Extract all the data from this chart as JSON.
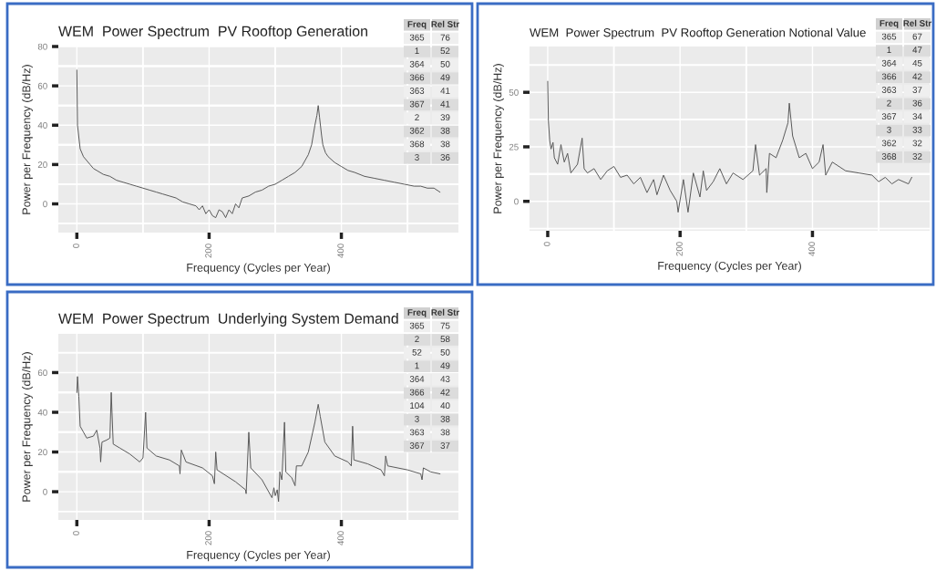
{
  "chart_data": [
    {
      "type": "line",
      "title": "WEM  Power Spectrum  PV Rooftop Generation",
      "xlabel": "Frequency (Cycles per Year)",
      "ylabel": "Power per Frequency (dB/Hz)",
      "xlim": [
        -28,
        577
      ],
      "ylim": [
        -14.6,
        80
      ],
      "xticks": [
        0,
        200,
        400
      ],
      "yticks": [
        0,
        20,
        40,
        60,
        80
      ],
      "grid": true,
      "legend": false,
      "series": [
        {
          "color": "#555555",
          "x": [
            0,
            1,
            5,
            10,
            15,
            20,
            25,
            30,
            40,
            50,
            60,
            70,
            80,
            90,
            100,
            110,
            120,
            130,
            140,
            150,
            160,
            170,
            180,
            185,
            190,
            195,
            200,
            205,
            210,
            215,
            220,
            225,
            230,
            235,
            240,
            245,
            250,
            260,
            270,
            280,
            290,
            300,
            310,
            320,
            330,
            340,
            345,
            350,
            355,
            360,
            363,
            365,
            367,
            370,
            372,
            376,
            380,
            390,
            400,
            410,
            420,
            435,
            450,
            465,
            480,
            495,
            510,
            520,
            530,
            540,
            549
          ],
          "values": [
            68,
            40,
            28,
            24,
            22,
            20,
            18,
            17,
            15,
            14,
            12,
            11,
            10,
            9,
            8,
            7,
            6,
            5,
            4,
            3,
            1,
            0,
            -1,
            -3,
            -1,
            -5,
            -3,
            -6,
            -7,
            -3,
            -4,
            -7,
            -3,
            -5,
            0,
            -2,
            3,
            4,
            6,
            7,
            9,
            10,
            12,
            14,
            16,
            19,
            22,
            25,
            30,
            40,
            45,
            50,
            44,
            35,
            30,
            26,
            24,
            21,
            19,
            17,
            16,
            14,
            13,
            12,
            11,
            10,
            9,
            9,
            8,
            8,
            6
          ]
        }
      ],
      "annotations": [
        "Freq",
        "Rel Str",
        "365",
        "76",
        "1",
        "52",
        "364",
        "50",
        "366",
        "49",
        "363",
        "41",
        "367",
        "41",
        "2",
        "39",
        "362",
        "38",
        "368",
        "38",
        "3",
        "36"
      ]
    },
    {
      "type": "line",
      "title": "WEM  Power Spectrum  PV Rooftop Generation Notional Value",
      "xlabel": "Frequency (Cycles per Year)",
      "ylabel": "Power per Frequency (dB/Hz)",
      "xlim": [
        -27.5,
        577
      ],
      "ylim": [
        -13.5,
        71
      ],
      "xticks": [
        0,
        200,
        400
      ],
      "yticks": [
        0,
        25,
        50
      ],
      "grid": true,
      "legend": false,
      "series": [
        {
          "color": "#555555",
          "x": [
            0,
            1,
            3,
            5,
            8,
            10,
            15,
            20,
            25,
            30,
            35,
            45,
            52,
            55,
            60,
            70,
            80,
            90,
            100,
            110,
            120,
            130,
            140,
            150,
            160,
            165,
            175,
            185,
            195,
            197,
            205,
            212,
            220,
            230,
            235,
            240,
            250,
            260,
            270,
            280,
            295,
            310,
            314,
            320,
            330,
            331,
            335,
            345,
            355,
            363,
            365,
            370,
            375,
            380,
            390,
            400,
            410,
            416,
            420,
            430,
            450,
            470,
            490,
            500,
            510,
            520,
            530,
            545,
            550
          ],
          "values": [
            55,
            37,
            28,
            24,
            27,
            20,
            17,
            26,
            18,
            22,
            13,
            17,
            29,
            15,
            13,
            15,
            10,
            14,
            16,
            11,
            12,
            8,
            11,
            4,
            10,
            3,
            12,
            5,
            0,
            -5,
            10,
            -5,
            13,
            2,
            14,
            5,
            9,
            15,
            8,
            13,
            10,
            14,
            26,
            12,
            15,
            4,
            22,
            20,
            28,
            36,
            45,
            30,
            25,
            20,
            22,
            15,
            18,
            26,
            12,
            18,
            14,
            13,
            12,
            9,
            11,
            8,
            10,
            8,
            11
          ]
        }
      ],
      "annotations": [
        "Freq",
        "Rel Str",
        "365",
        "67",
        "1",
        "47",
        "364",
        "45",
        "366",
        "42",
        "363",
        "37",
        "2",
        "36",
        "367",
        "34",
        "3",
        "33",
        "362",
        "32",
        "368",
        "32"
      ]
    },
    {
      "type": "line",
      "title": "WEM  Power Spectrum  Underlying System Demand",
      "xlabel": "Frequency (Cycles per Year)",
      "ylabel": "Power per Frequency (dB/Hz)",
      "xlim": [
        -28,
        577
      ],
      "ylim": [
        -14.2,
        79.5
      ],
      "xticks": [
        0,
        200,
        400
      ],
      "yticks": [
        0,
        20,
        40,
        60
      ],
      "grid": true,
      "legend": false,
      "series": [
        {
          "color": "#555555",
          "x": [
            0,
            1,
            3,
            5,
            10,
            15,
            25,
            30,
            35,
            36,
            38,
            45,
            50,
            52,
            55,
            65,
            80,
            95,
            100,
            104,
            106,
            120,
            140,
            155,
            156,
            158,
            165,
            190,
            205,
            208,
            210,
            212,
            240,
            255,
            256,
            260,
            263,
            280,
            290,
            295,
            298,
            300,
            303,
            305,
            307,
            310,
            314,
            316,
            325,
            330,
            332,
            340,
            350,
            360,
            365,
            368,
            375,
            390,
            410,
            415,
            417,
            419,
            440,
            460,
            465,
            467,
            470,
            500,
            520,
            522,
            524,
            535,
            549
          ],
          "values": [
            50,
            58,
            48,
            33,
            30,
            27,
            28,
            31,
            22,
            15,
            25,
            26,
            27,
            50,
            24,
            22,
            19,
            15,
            17,
            40,
            22,
            18,
            16,
            13,
            9,
            21,
            15,
            12,
            8,
            4,
            20,
            11,
            5,
            1,
            -1,
            30,
            12,
            6,
            0,
            -3,
            2,
            -2,
            1,
            -5,
            10,
            6,
            35,
            10,
            7,
            3,
            13,
            13,
            20,
            35,
            44,
            38,
            25,
            18,
            15,
            13,
            33,
            16,
            14,
            11,
            8,
            18,
            13,
            11,
            9,
            6,
            12,
            10,
            9
          ]
        }
      ],
      "annotations": [
        "Freq",
        "Rel Str",
        "365",
        "75",
        "2",
        "58",
        "52",
        "50",
        "1",
        "49",
        "364",
        "43",
        "366",
        "42",
        "104",
        "40",
        "3",
        "38",
        "363",
        "38",
        "367",
        "37"
      ]
    }
  ]
}
